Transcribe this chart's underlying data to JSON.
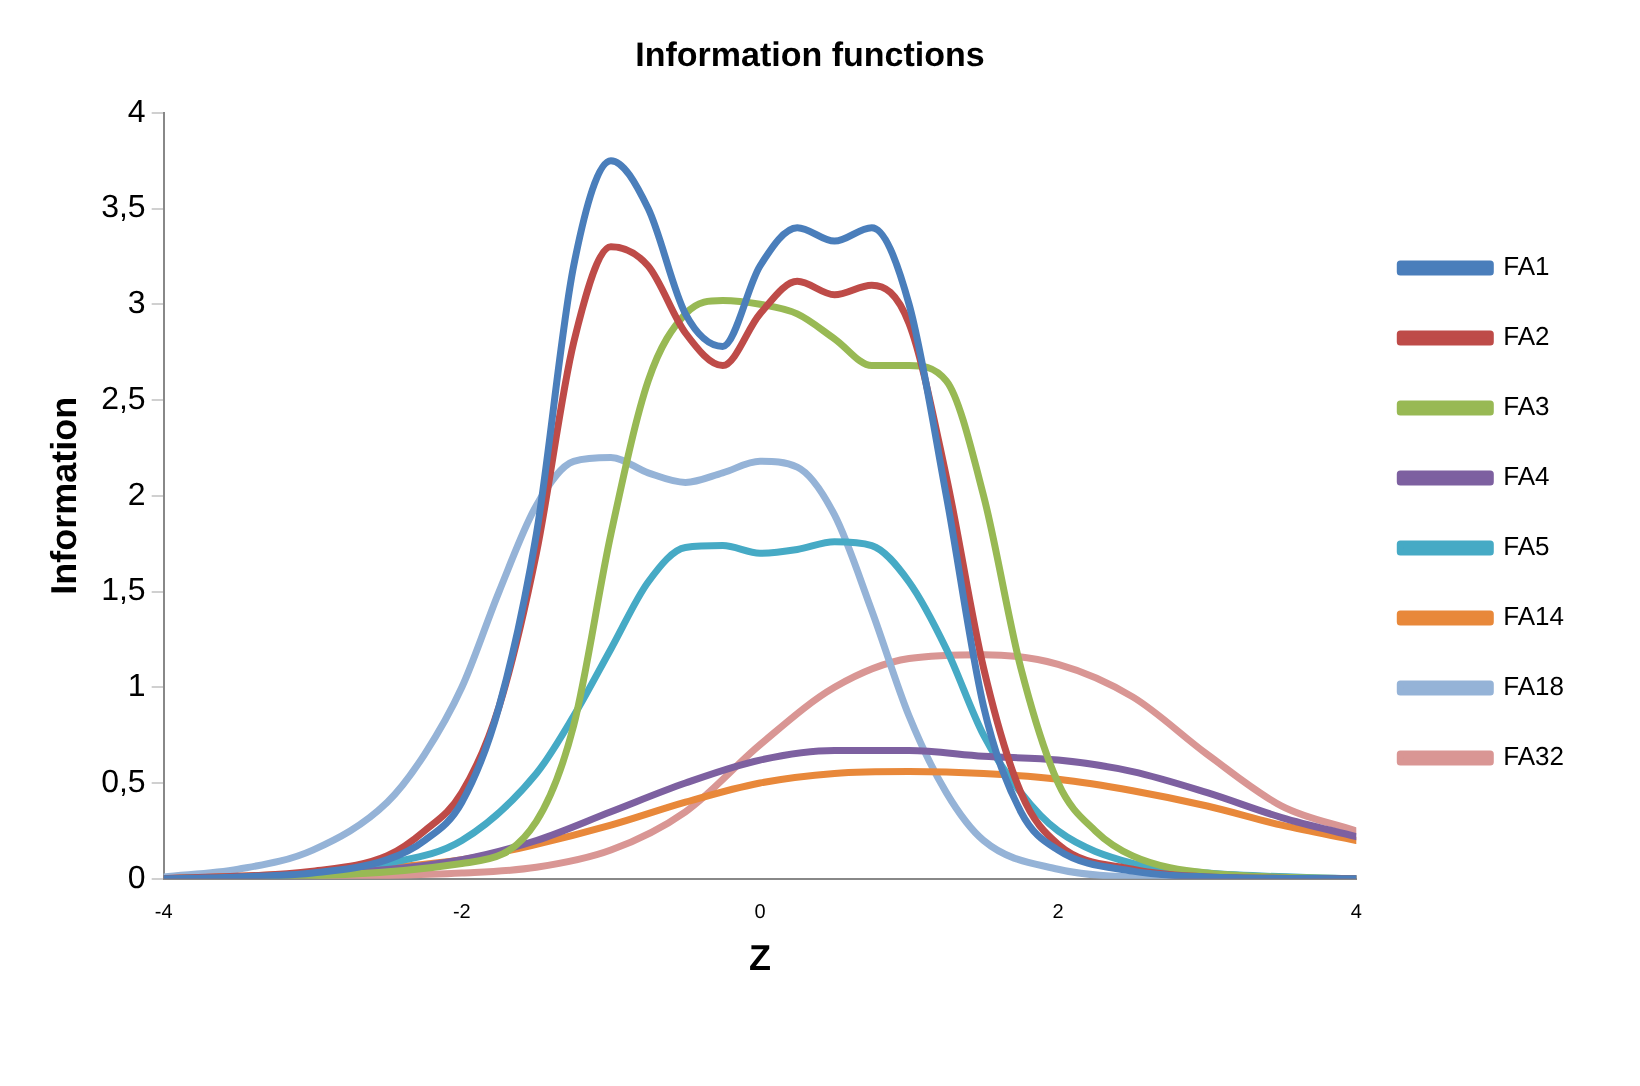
{
  "chart_data": {
    "type": "line",
    "title": "Information functions",
    "xlabel": "Z",
    "ylabel": "Information",
    "xlim": [
      -4,
      4
    ],
    "xticks": [
      -4,
      -2,
      0,
      2,
      4
    ],
    "ylim": [
      0,
      4
    ],
    "yticks": [
      0,
      {
        "value": 0.5,
        "label": "0,5"
      },
      1,
      {
        "value": 1.5,
        "label": "1,5"
      },
      2,
      {
        "value": 2.5,
        "label": "2,5"
      },
      3,
      {
        "value": 3.5,
        "label": "3,5"
      },
      4
    ],
    "grid": false,
    "legend": "right",
    "marker": "none",
    "line_style": "solid",
    "series": [
      {
        "name": "FA1",
        "color": "#4a7ebb",
        "x": [
          -4,
          -3.5,
          -3,
          -2.5,
          -2.25,
          -2,
          -1.75,
          -1.5,
          -1.25,
          -1,
          -0.75,
          -0.5,
          -0.25,
          0,
          0.25,
          0.5,
          0.75,
          1,
          1.25,
          1.5,
          1.75,
          2,
          2.5,
          3,
          4
        ],
        "values": [
          0,
          0.01,
          0.03,
          0.1,
          0.2,
          0.4,
          0.9,
          1.8,
          3.2,
          3.75,
          3.5,
          2.95,
          2.78,
          3.2,
          3.4,
          3.33,
          3.4,
          3.0,
          2.0,
          0.9,
          0.35,
          0.15,
          0.04,
          0.01,
          0
        ]
      },
      {
        "name": "FA2",
        "color": "#be4b48",
        "x": [
          -4,
          -3,
          -2.5,
          -2.25,
          -2,
          -1.75,
          -1.5,
          -1.25,
          -1,
          -0.75,
          -0.5,
          -0.25,
          0,
          0.25,
          0.5,
          0.75,
          1,
          1.25,
          1.5,
          1.75,
          2,
          2.5,
          3,
          4
        ],
        "values": [
          0,
          0.04,
          0.12,
          0.25,
          0.45,
          0.9,
          1.7,
          2.8,
          3.3,
          3.2,
          2.85,
          2.68,
          2.95,
          3.12,
          3.05,
          3.1,
          2.9,
          2.1,
          1.1,
          0.45,
          0.18,
          0.05,
          0.01,
          0
        ]
      },
      {
        "name": "FA3",
        "color": "#98b954",
        "x": [
          -4,
          -2,
          -1.5,
          -1.25,
          -1,
          -0.75,
          -0.5,
          -0.25,
          0,
          0.25,
          0.5,
          0.75,
          1,
          1.25,
          1.5,
          1.75,
          2,
          2.25,
          2.5,
          3,
          4
        ],
        "values": [
          0,
          0.08,
          0.3,
          0.8,
          1.8,
          2.6,
          2.95,
          3.02,
          3.0,
          2.95,
          2.82,
          2.68,
          2.68,
          2.6,
          2.0,
          1.1,
          0.5,
          0.25,
          0.12,
          0.03,
          0
        ]
      },
      {
        "name": "FA4",
        "color": "#7d60a0",
        "x": [
          -4,
          -3,
          -2,
          -1.5,
          -1,
          -0.5,
          0,
          0.5,
          1,
          1.5,
          2,
          2.5,
          3,
          3.5,
          4
        ],
        "values": [
          0,
          0.02,
          0.1,
          0.2,
          0.35,
          0.5,
          0.62,
          0.67,
          0.67,
          0.64,
          0.62,
          0.56,
          0.45,
          0.32,
          0.22
        ]
      },
      {
        "name": "FA5",
        "color": "#46aac5",
        "x": [
          -4,
          -3,
          -2.5,
          -2,
          -1.5,
          -1.25,
          -1,
          -0.75,
          -0.5,
          -0.25,
          0,
          0.25,
          0.5,
          0.75,
          1,
          1.25,
          1.5,
          1.75,
          2,
          2.5,
          3,
          4
        ],
        "values": [
          0,
          0.03,
          0.08,
          0.2,
          0.55,
          0.85,
          1.2,
          1.55,
          1.73,
          1.74,
          1.7,
          1.72,
          1.76,
          1.74,
          1.55,
          1.2,
          0.75,
          0.45,
          0.25,
          0.08,
          0.03,
          0
        ]
      },
      {
        "name": "FA14",
        "color": "#e8883a",
        "x": [
          -4,
          -3,
          -2,
          -1.5,
          -1,
          -0.5,
          0,
          0.5,
          1,
          1.5,
          2,
          2.5,
          3,
          3.5,
          4
        ],
        "values": [
          0,
          0.03,
          0.1,
          0.18,
          0.28,
          0.4,
          0.5,
          0.55,
          0.56,
          0.55,
          0.52,
          0.46,
          0.38,
          0.28,
          0.2
        ]
      },
      {
        "name": "FA18",
        "color": "#95b3d7",
        "x": [
          -4,
          -3.5,
          -3,
          -2.5,
          -2.25,
          -2,
          -1.75,
          -1.5,
          -1.25,
          -1,
          -0.75,
          -0.5,
          -0.25,
          0,
          0.25,
          0.5,
          0.75,
          1,
          1.25,
          1.5,
          2,
          2.5,
          4
        ],
        "values": [
          0.01,
          0.05,
          0.15,
          0.4,
          0.65,
          1.0,
          1.5,
          1.95,
          2.18,
          2.2,
          2.12,
          2.07,
          2.12,
          2.18,
          2.15,
          1.9,
          1.4,
          0.85,
          0.45,
          0.2,
          0.05,
          0.01,
          0
        ]
      },
      {
        "name": "FA32",
        "color": "#d99694",
        "x": [
          -4,
          -3,
          -2,
          -1.5,
          -1,
          -0.5,
          0,
          0.5,
          1,
          1.5,
          2,
          2.5,
          3,
          3.5,
          4
        ],
        "values": [
          0,
          0.01,
          0.03,
          0.06,
          0.15,
          0.35,
          0.7,
          1.0,
          1.15,
          1.17,
          1.12,
          0.95,
          0.65,
          0.38,
          0.25
        ]
      }
    ]
  }
}
